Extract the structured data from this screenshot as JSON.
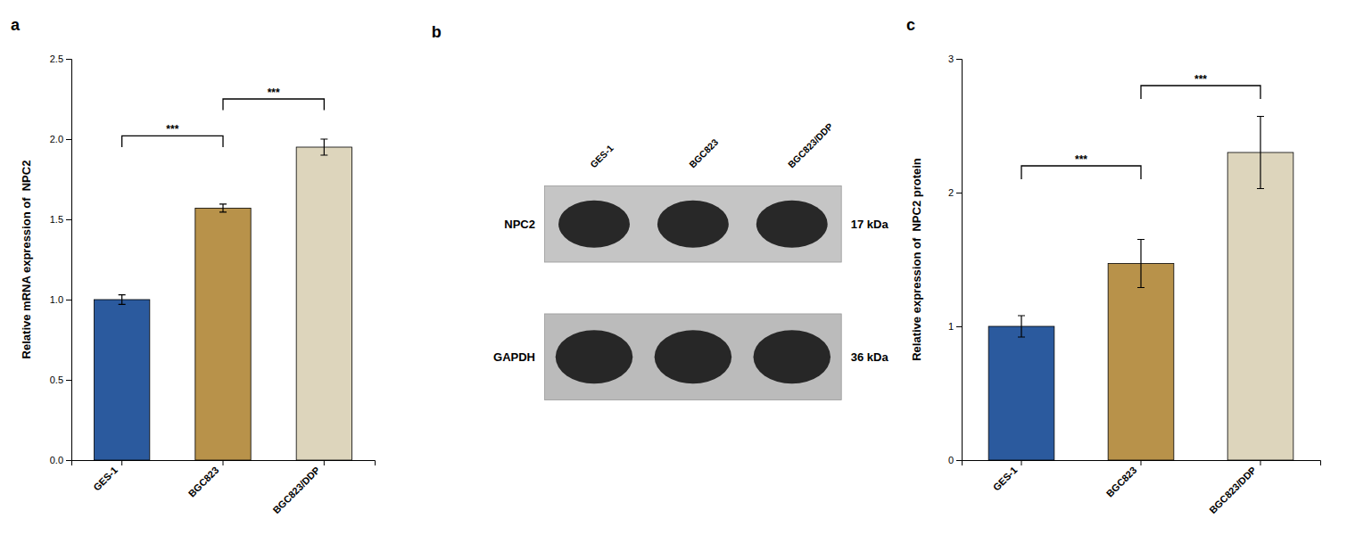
{
  "chart_data": [
    {
      "type": "bar",
      "title": "a",
      "categories": [
        "GES-1",
        "BGC823",
        "BGC823/DDP"
      ],
      "values": [
        1.0,
        1.57,
        1.95
      ],
      "errors": [
        0.03,
        0.025,
        0.05
      ],
      "colors": [
        "#2b5a9e",
        "#b8924a",
        "#ddd5bc"
      ],
      "ylabel": "Relative mRNA expression of  NPC2",
      "ylim": [
        0,
        2.5
      ],
      "yticks": [
        {
          "value": 0,
          "label": "0.0"
        },
        0.5,
        {
          "value": 1,
          "label": "1.0"
        },
        1.5,
        {
          "value": 2,
          "label": "2.0"
        },
        2.5
      ],
      "annotations": [
        {
          "label": "***",
          "from": "GES-1",
          "to": "BGC823",
          "y": 1.95,
          "dy": 0.07
        },
        {
          "label": "***",
          "from": "BGC823",
          "to": "BGC823/DDP",
          "y": 2.18,
          "dy": 0.07
        }
      ]
    },
    {
      "type": "blot",
      "title": "b",
      "categories": [
        "GES-1",
        "BGC823",
        "BGC823/DDP"
      ],
      "row_labels": [
        "NPC2",
        "GAPDH"
      ],
      "annotations": [
        "17 kDa",
        "36 kDa"
      ],
      "color": "#1a1a1a"
    },
    {
      "type": "bar",
      "title": "c",
      "categories": [
        "GES-1",
        "BGC823",
        "BGC823/DDP"
      ],
      "values": [
        1.0,
        1.47,
        2.3
      ],
      "errors": [
        0.08,
        0.18,
        0.27
      ],
      "colors": [
        "#2b5a9e",
        "#b8924a",
        "#ddd5bc"
      ],
      "ylabel": "Relative expression of  NPC2 protein",
      "ylim": [
        0,
        3.0
      ],
      "yticks": [
        0,
        1,
        2,
        3
      ],
      "annotations": [
        {
          "label": "***",
          "from": "GES-1",
          "to": "BGC823",
          "y": 2.1,
          "dy": 0.1
        },
        {
          "label": "***",
          "from": "BGC823",
          "to": "BGC823/DDP",
          "y": 2.7,
          "dy": 0.1
        }
      ]
    }
  ]
}
